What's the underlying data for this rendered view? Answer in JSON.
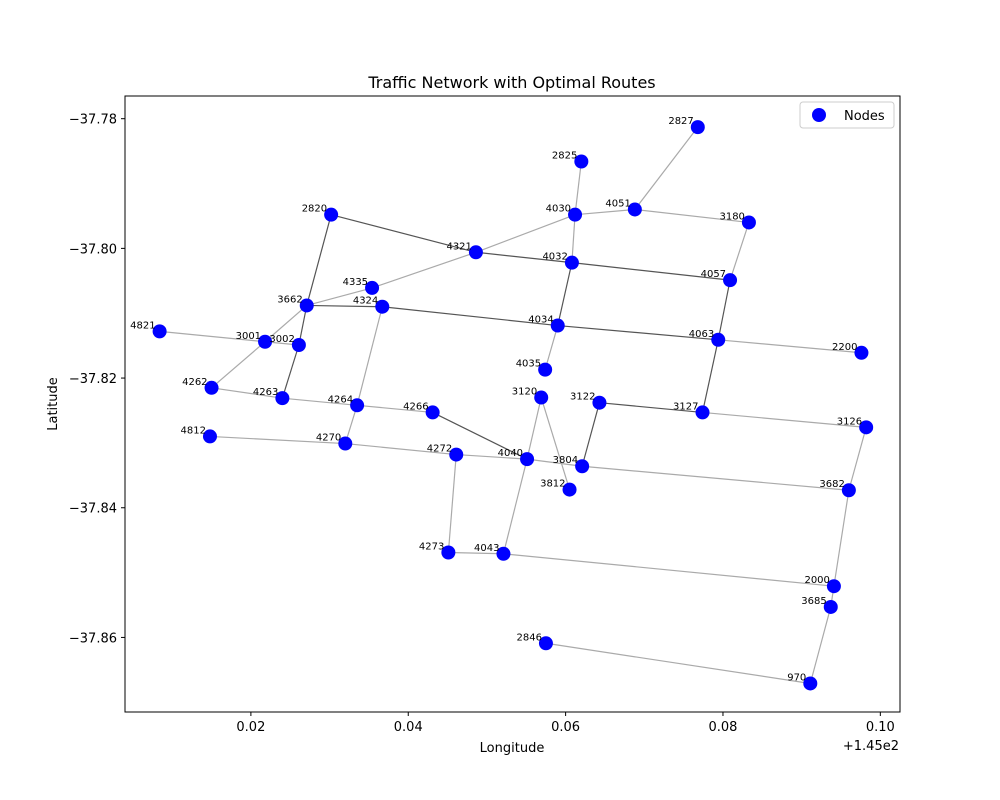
{
  "chart_data": {
    "type": "scatter",
    "title": "Traffic Network with Optimal Routes",
    "xlabel": "Longitude",
    "ylabel": "Latitude",
    "x_offset_label": "+1.45e2",
    "xlim": [
      145.004,
      145.1025
    ],
    "ylim": [
      -37.8715,
      -37.7765
    ],
    "x_ticks": [
      145.02,
      145.04,
      145.06,
      145.08,
      145.1
    ],
    "x_tick_labels": [
      "0.02",
      "0.04",
      "0.06",
      "0.08",
      "0.10"
    ],
    "y_ticks": [
      -37.78,
      -37.8,
      -37.82,
      -37.84,
      -37.86
    ],
    "y_tick_labels": [
      "−37.78",
      "−37.80",
      "−37.82",
      "−37.84",
      "−37.86"
    ],
    "grid": false,
    "legend": {
      "position": "top-right",
      "entries": [
        "Nodes"
      ]
    },
    "series": [
      {
        "name": "Nodes",
        "color": "#0000ff",
        "points": [
          {
            "id": "2827",
            "x": 145.0768,
            "y": -37.7813
          },
          {
            "id": "2825",
            "x": 145.062,
            "y": -37.7866
          },
          {
            "id": "4030",
            "x": 145.0612,
            "y": -37.7948
          },
          {
            "id": "4051",
            "x": 145.0688,
            "y": -37.794
          },
          {
            "id": "3180",
            "x": 145.0833,
            "y": -37.796
          },
          {
            "id": "2820",
            "x": 145.0302,
            "y": -37.7948
          },
          {
            "id": "4321",
            "x": 145.0486,
            "y": -37.8006
          },
          {
            "id": "4032",
            "x": 145.0608,
            "y": -37.8022
          },
          {
            "id": "4057",
            "x": 145.0809,
            "y": -37.8049
          },
          {
            "id": "4335",
            "x": 145.0354,
            "y": -37.8061
          },
          {
            "id": "3662",
            "x": 145.0271,
            "y": -37.8088
          },
          {
            "id": "4324",
            "x": 145.0367,
            "y": -37.809
          },
          {
            "id": "4034",
            "x": 145.059,
            "y": -37.8119
          },
          {
            "id": "4063",
            "x": 145.0794,
            "y": -37.8141
          },
          {
            "id": "4821",
            "x": 145.0084,
            "y": -37.8128
          },
          {
            "id": "3001",
            "x": 145.0218,
            "y": -37.8144
          },
          {
            "id": "3002",
            "x": 145.0261,
            "y": -37.8149
          },
          {
            "id": "2200",
            "x": 145.0976,
            "y": -37.8161
          },
          {
            "id": "4035",
            "x": 145.0574,
            "y": -37.8187
          },
          {
            "id": "4262",
            "x": 145.015,
            "y": -37.8215
          },
          {
            "id": "3120",
            "x": 145.0569,
            "y": -37.823
          },
          {
            "id": "3122",
            "x": 145.0643,
            "y": -37.8238
          },
          {
            "id": "4263",
            "x": 145.024,
            "y": -37.8231
          },
          {
            "id": "4264",
            "x": 145.0335,
            "y": -37.8242
          },
          {
            "id": "4266",
            "x": 145.0431,
            "y": -37.8253
          },
          {
            "id": "3127",
            "x": 145.0774,
            "y": -37.8253
          },
          {
            "id": "3126",
            "x": 145.0982,
            "y": -37.8276
          },
          {
            "id": "4812",
            "x": 145.0148,
            "y": -37.829
          },
          {
            "id": "4270",
            "x": 145.032,
            "y": -37.8301
          },
          {
            "id": "4272",
            "x": 145.0461,
            "y": -37.8318
          },
          {
            "id": "4040",
            "x": 145.0551,
            "y": -37.8325
          },
          {
            "id": "3804",
            "x": 145.0621,
            "y": -37.8336
          },
          {
            "id": "3812",
            "x": 145.0605,
            "y": -37.8372
          },
          {
            "id": "3682",
            "x": 145.096,
            "y": -37.8373
          },
          {
            "id": "4273",
            "x": 145.0451,
            "y": -37.8469
          },
          {
            "id": "4043",
            "x": 145.0521,
            "y": -37.8471
          },
          {
            "id": "2000",
            "x": 145.0941,
            "y": -37.8521
          },
          {
            "id": "3685",
            "x": 145.0937,
            "y": -37.8553
          },
          {
            "id": "2846",
            "x": 145.0575,
            "y": -37.8609
          },
          {
            "id": "970",
            "x": 145.0911,
            "y": -37.8671
          }
        ]
      }
    ],
    "edges": [
      [
        "2827",
        "4051"
      ],
      [
        "2825",
        "4030"
      ],
      [
        "4030",
        "4051"
      ],
      [
        "4051",
        "3180"
      ],
      [
        "3180",
        "4057"
      ],
      [
        "4030",
        "4321"
      ],
      [
        "4030",
        "4032"
      ],
      [
        "4321",
        "4335"
      ],
      [
        "4335",
        "3662"
      ],
      [
        "3662",
        "3001"
      ],
      [
        "3001",
        "4262"
      ],
      [
        "4821",
        "3001"
      ],
      [
        "3001",
        "3002"
      ],
      [
        "4324",
        "4264"
      ],
      [
        "4264",
        "4270"
      ],
      [
        "4034",
        "4035"
      ],
      [
        "4063",
        "2200"
      ],
      [
        "3127",
        "3126"
      ],
      [
        "3126",
        "3682"
      ],
      [
        "3682",
        "2000"
      ],
      [
        "2000",
        "3685"
      ],
      [
        "3685",
        "970"
      ],
      [
        "970",
        "2846"
      ],
      [
        "4812",
        "4270"
      ],
      [
        "4270",
        "4272"
      ],
      [
        "4272",
        "4040"
      ],
      [
        "4040",
        "3804"
      ],
      [
        "3804",
        "3682"
      ],
      [
        "4272",
        "4273"
      ],
      [
        "4273",
        "4043"
      ],
      [
        "4043",
        "2000"
      ],
      [
        "4043",
        "4040"
      ],
      [
        "4040",
        "3120"
      ],
      [
        "3120",
        "3812"
      ],
      [
        "4262",
        "4263"
      ],
      [
        "4263",
        "4264"
      ],
      [
        "4264",
        "4266"
      ]
    ],
    "route_edges": [
      [
        "2820",
        "4321"
      ],
      [
        "4321",
        "4032"
      ],
      [
        "4032",
        "4057"
      ],
      [
        "2820",
        "3662"
      ],
      [
        "3662",
        "4324"
      ],
      [
        "4324",
        "4034"
      ],
      [
        "4034",
        "4063"
      ],
      [
        "4032",
        "4034"
      ],
      [
        "4057",
        "4063"
      ],
      [
        "4063",
        "3127"
      ],
      [
        "3122",
        "3127"
      ],
      [
        "3122",
        "3804"
      ],
      [
        "3662",
        "3002"
      ],
      [
        "3002",
        "4263"
      ],
      [
        "4266",
        "4040"
      ]
    ],
    "colors": {
      "node": "#0000ff",
      "edge": "#aaaaaa",
      "route_edge": "#555555"
    }
  }
}
